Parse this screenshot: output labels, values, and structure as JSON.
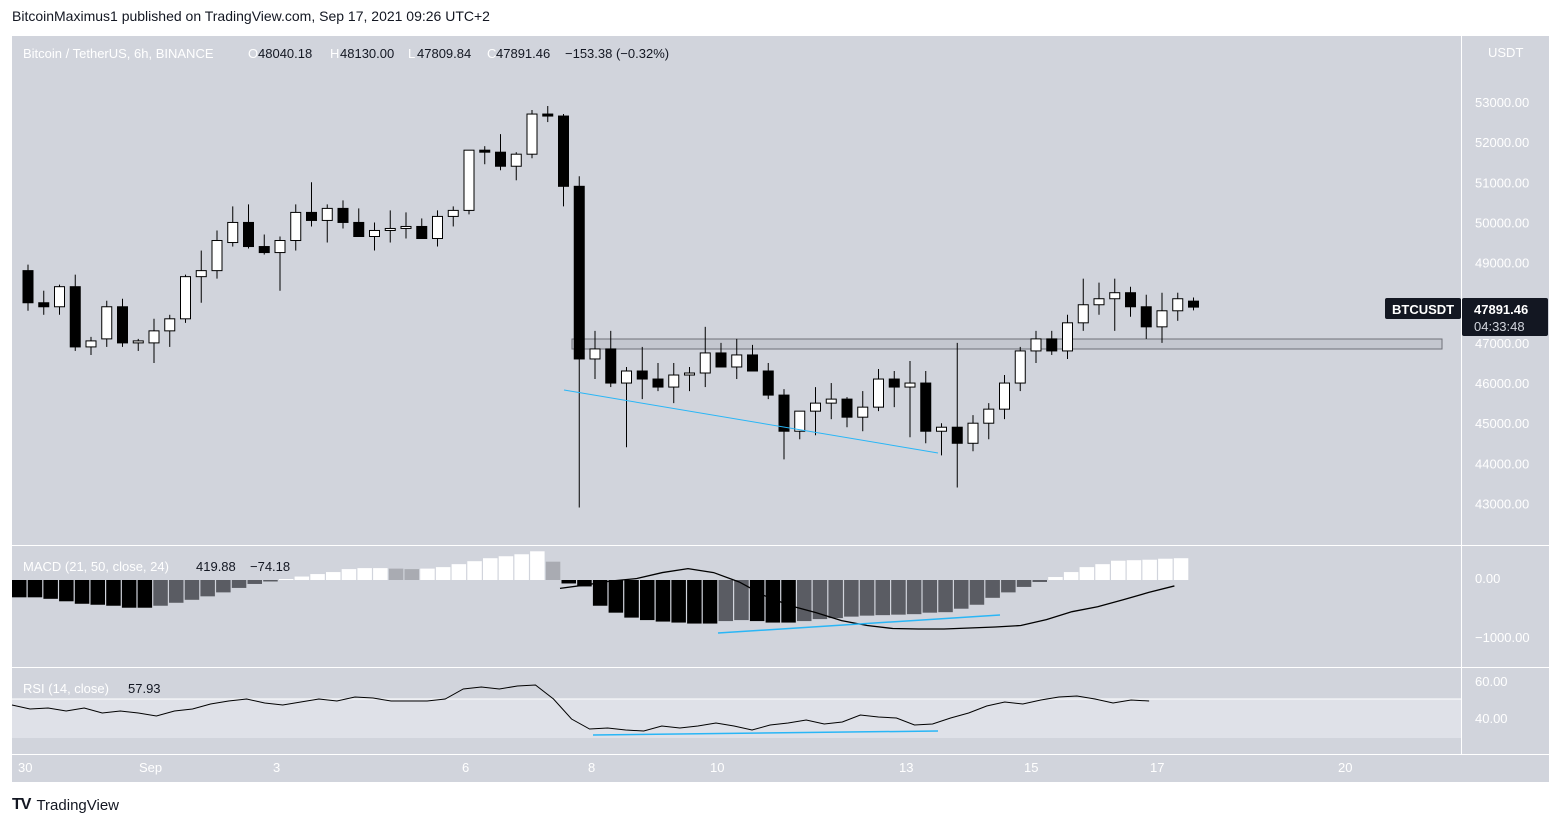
{
  "header": {
    "publisher": "BitcoinMaximus1 published on TradingView.com, Sep 17, 2021 09:26 UTC+2"
  },
  "footer": {
    "brand": "TradingView"
  },
  "legend": {
    "symbol": "Bitcoin / TetherUS, 6h, BINANCE",
    "o_label": "O",
    "o": "48040.18",
    "h_label": "H",
    "h": "48130.00",
    "l_label": "L",
    "l": "47809.84",
    "c_label": "C",
    "c": "47891.46",
    "change": "−153.38 (−0.32%)"
  },
  "price_axis": {
    "currency": "USDT",
    "ticks": [
      "53000.00",
      "52000.00",
      "51000.00",
      "50000.00",
      "49000.00",
      "48000.00",
      "47000.00",
      "46000.00",
      "45000.00",
      "44000.00",
      "43000.00"
    ]
  },
  "price_tag": {
    "symbol": "BTCUSDT",
    "price": "47891.46",
    "countdown": "04:33:48"
  },
  "macd": {
    "label": "MACD (21, 50, close, 24)",
    "v1": "419.88",
    "v2": "−74.18",
    "ticks": [
      "0.00",
      "−1000.00"
    ]
  },
  "rsi": {
    "label": "RSI (14, close)",
    "value": "57.93",
    "ticks": [
      "60.00",
      "40.00"
    ]
  },
  "time_axis": {
    "labels": [
      "30",
      "Sep",
      "3",
      "6",
      "8",
      "10",
      "13",
      "15",
      "17",
      "20"
    ]
  },
  "colors": {
    "pane_bg": "#d1d4dc",
    "rsi_band": "#dfe1e8",
    "up": "#ffffff",
    "down": "#000000",
    "trendline": "#29b6f6",
    "tag_bg": "#131722"
  },
  "chart_data": {
    "type": "candlestick",
    "title": "Bitcoin / TetherUS, 6h, BINANCE",
    "ylim": [
      42500,
      54000
    ],
    "support_zone": [
      46850,
      47100
    ],
    "candles": [
      [
        48800,
        48950,
        47800,
        48000
      ],
      [
        48000,
        48300,
        47700,
        47900
      ],
      [
        47900,
        48450,
        47700,
        48400
      ],
      [
        48400,
        48700,
        46800,
        46900
      ],
      [
        46900,
        47150,
        46700,
        47050
      ],
      [
        47100,
        48050,
        46900,
        47900
      ],
      [
        47900,
        48100,
        46900,
        47000
      ],
      [
        47000,
        47100,
        46800,
        47050
      ],
      [
        47000,
        47600,
        46500,
        47300
      ],
      [
        47300,
        47700,
        46900,
        47600
      ],
      [
        47600,
        48700,
        47500,
        48650
      ],
      [
        48650,
        49300,
        48000,
        48800
      ],
      [
        48800,
        49800,
        48600,
        49550
      ],
      [
        49500,
        50400,
        49400,
        50000
      ],
      [
        50000,
        50450,
        49350,
        49400
      ],
      [
        49400,
        49700,
        49200,
        49250
      ],
      [
        49250,
        49650,
        48300,
        49550
      ],
      [
        49550,
        50450,
        49300,
        50250
      ],
      [
        50250,
        51000,
        49900,
        50050
      ],
      [
        50050,
        50450,
        49500,
        50350
      ],
      [
        50350,
        50550,
        49850,
        50000
      ],
      [
        50000,
        50350,
        49700,
        49650
      ],
      [
        49650,
        50000,
        49300,
        49800
      ],
      [
        49800,
        50300,
        49500,
        49850
      ],
      [
        49850,
        50250,
        49600,
        49900
      ],
      [
        49900,
        50100,
        49600,
        49600
      ],
      [
        49600,
        50300,
        49400,
        50150
      ],
      [
        50150,
        50400,
        49900,
        50300
      ],
      [
        50300,
        51800,
        50200,
        51800
      ],
      [
        51800,
        51900,
        51450,
        51750
      ],
      [
        51750,
        52200,
        51300,
        51400
      ],
      [
        51400,
        51750,
        51050,
        51700
      ],
      [
        51700,
        52800,
        51600,
        52700
      ],
      [
        52700,
        52900,
        52500,
        52650
      ],
      [
        52650,
        52700,
        50400,
        50900
      ],
      [
        50900,
        51150,
        42900,
        46600
      ],
      [
        46600,
        47300,
        46100,
        46850
      ],
      [
        46850,
        47300,
        45900,
        46000
      ],
      [
        46000,
        46400,
        44400,
        46300
      ],
      [
        46300,
        46900,
        45600,
        46100
      ],
      [
        46100,
        46500,
        45800,
        45900
      ],
      [
        45900,
        46500,
        45500,
        46200
      ],
      [
        46200,
        46400,
        45800,
        46250
      ],
      [
        46250,
        47400,
        45900,
        46750
      ],
      [
        46750,
        47000,
        46400,
        46400
      ],
      [
        46400,
        47100,
        46100,
        46700
      ],
      [
        46700,
        46950,
        46350,
        46300
      ],
      [
        46300,
        46500,
        45600,
        45700
      ],
      [
        45700,
        45850,
        44100,
        44800
      ],
      [
        44800,
        45300,
        44600,
        45300
      ],
      [
        45300,
        45900,
        44700,
        45500
      ],
      [
        45500,
        46000,
        45100,
        45600
      ],
      [
        45600,
        45650,
        44900,
        45150
      ],
      [
        45150,
        45800,
        44800,
        45400
      ],
      [
        45400,
        46350,
        45300,
        46100
      ],
      [
        46100,
        46300,
        45400,
        45900
      ],
      [
        45900,
        46550,
        44650,
        46000
      ],
      [
        46000,
        46300,
        44500,
        44800
      ],
      [
        44800,
        45000,
        44200,
        44900
      ],
      [
        44900,
        47000,
        43400,
        44500
      ],
      [
        44500,
        45200,
        44300,
        45000
      ],
      [
        45000,
        45500,
        44600,
        45350
      ],
      [
        45350,
        46200,
        45100,
        46000
      ],
      [
        46000,
        46900,
        45800,
        46800
      ],
      [
        46800,
        47300,
        46500,
        47100
      ],
      [
        47100,
        47300,
        46700,
        46800
      ],
      [
        46800,
        47700,
        46600,
        47500
      ],
      [
        47500,
        48600,
        47300,
        47950
      ],
      [
        47950,
        48500,
        47700,
        48100
      ],
      [
        48100,
        48600,
        47300,
        48250
      ],
      [
        48250,
        48400,
        47650,
        47900
      ],
      [
        47900,
        48200,
        47100,
        47400
      ],
      [
        47400,
        48250,
        47000,
        47800
      ],
      [
        47800,
        48250,
        47550,
        48100
      ],
      [
        48040.18,
        48130,
        47809.84,
        47891.46
      ]
    ],
    "macd_hist": [
      -350,
      -350,
      -380,
      -430,
      -480,
      -500,
      -520,
      -560,
      -560,
      -520,
      -460,
      -400,
      -330,
      -250,
      -160,
      -80,
      -30,
      20,
      70,
      120,
      160,
      220,
      240,
      240,
      230,
      220,
      230,
      260,
      320,
      380,
      440,
      480,
      520,
      580,
      370,
      -70,
      -130,
      -520,
      -660,
      -760,
      -810,
      -840,
      -860,
      -880,
      -880,
      -830,
      -810,
      -830,
      -860,
      -860,
      -830,
      -790,
      -770,
      -740,
      -720,
      -710,
      -700,
      -690,
      -660,
      -650,
      -580,
      -500,
      -360,
      -250,
      -140,
      -40,
      60,
      160,
      260,
      320,
      390,
      400,
      410,
      430,
      440
    ],
    "macd_signal": [
      -170,
      -100,
      -20,
      30,
      150,
      230,
      150,
      -40,
      -320,
      -520,
      -660,
      -820,
      -920,
      -980,
      -990,
      -990,
      -970,
      -950,
      -920,
      -800,
      -640,
      -540,
      -400,
      -250,
      -120
    ],
    "rsi": [
      54,
      50,
      51,
      48,
      51,
      46,
      48,
      46,
      43,
      48,
      50,
      55,
      58,
      60,
      56,
      54,
      57,
      60,
      58,
      62,
      61,
      58,
      58,
      58,
      60,
      70,
      72,
      70,
      73,
      74,
      60,
      40,
      30,
      31,
      29,
      28,
      33,
      31,
      33,
      36,
      33,
      29,
      34,
      36,
      39,
      35,
      37,
      44,
      42,
      41,
      34,
      35,
      41,
      46,
      53,
      57,
      55,
      59,
      62,
      63,
      60,
      56,
      59,
      58
    ]
  }
}
